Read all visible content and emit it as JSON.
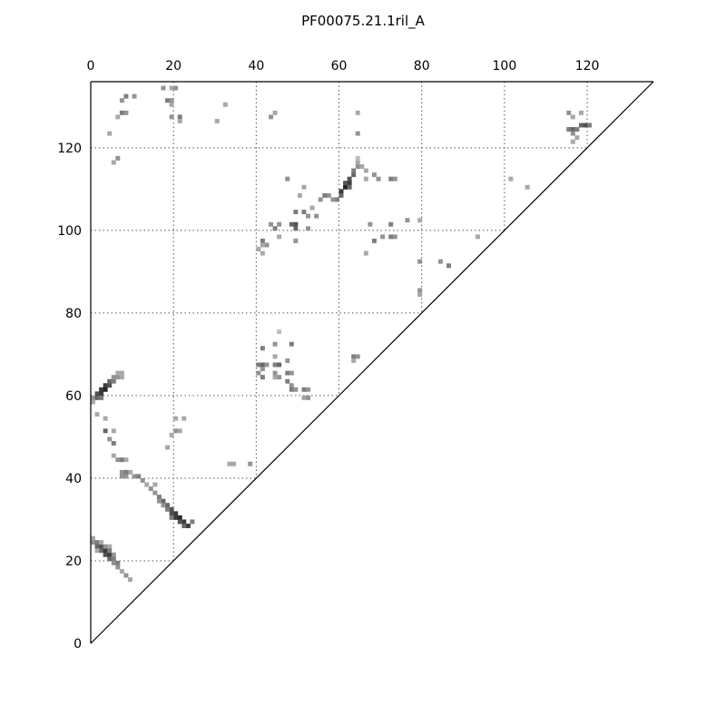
{
  "chart_data": {
    "type": "heatmap",
    "title": "PF00075.21.1ril_A",
    "xlabel": "",
    "ylabel": "",
    "xlim": [
      0,
      136
    ],
    "ylim": [
      0,
      136
    ],
    "x_ticks": [
      0,
      20,
      40,
      60,
      80,
      100,
      120
    ],
    "y_ticks": [
      0,
      20,
      40,
      60,
      80,
      100,
      120
    ],
    "x_tick_labels": [
      "0",
      "20",
      "40",
      "60",
      "80",
      "100",
      "120"
    ],
    "y_tick_labels": [
      "0",
      "20",
      "40",
      "60",
      "80",
      "100",
      "120"
    ],
    "grid": true,
    "x_axis_position": "top",
    "colormap": "grayscale",
    "value_range": [
      0,
      1
    ],
    "cell_size": 1,
    "cells": [
      [
        0,
        25,
        0.4
      ],
      [
        0,
        24,
        0.5
      ],
      [
        1,
        24,
        0.6
      ],
      [
        1,
        23,
        0.7
      ],
      [
        2,
        23,
        0.8
      ],
      [
        2,
        22,
        0.7
      ],
      [
        3,
        22,
        0.9
      ],
      [
        3,
        21,
        0.8
      ],
      [
        4,
        21,
        0.9
      ],
      [
        4,
        20,
        0.7
      ],
      [
        5,
        20,
        0.6
      ],
      [
        5,
        19,
        0.5
      ],
      [
        6,
        19,
        0.6
      ],
      [
        6,
        18,
        0.5
      ],
      [
        7,
        17,
        0.4
      ],
      [
        8,
        16,
        0.5
      ],
      [
        9,
        15,
        0.4
      ],
      [
        2,
        24,
        0.4
      ],
      [
        3,
        23,
        0.5
      ],
      [
        4,
        23,
        0.4
      ],
      [
        4,
        22,
        0.6
      ],
      [
        5,
        21,
        0.5
      ],
      [
        1,
        22,
        0.4
      ],
      [
        23,
        28,
        0.9
      ],
      [
        22,
        29,
        0.9
      ],
      [
        21,
        30,
        1.0
      ],
      [
        20,
        31,
        0.9
      ],
      [
        19,
        31,
        0.8
      ],
      [
        19,
        32,
        0.8
      ],
      [
        18,
        33,
        0.7
      ],
      [
        17,
        34,
        0.7
      ],
      [
        16,
        35,
        0.6
      ],
      [
        15,
        36,
        0.5
      ],
      [
        14,
        37,
        0.5
      ],
      [
        13,
        38,
        0.4
      ],
      [
        12,
        39,
        0.5
      ],
      [
        11,
        40,
        0.6
      ],
      [
        10,
        40,
        0.5
      ],
      [
        9,
        41,
        0.4
      ],
      [
        22,
        28,
        0.7
      ],
      [
        21,
        29,
        0.8
      ],
      [
        20,
        30,
        0.9
      ],
      [
        19,
        30,
        0.6
      ],
      [
        18,
        32,
        0.6
      ],
      [
        17,
        33,
        0.5
      ],
      [
        16,
        34,
        0.5
      ],
      [
        24,
        29,
        0.6
      ],
      [
        7,
        41,
        0.5
      ],
      [
        7,
        40,
        0.5
      ],
      [
        8,
        41,
        0.6
      ],
      [
        8,
        40,
        0.5
      ],
      [
        15,
        38,
        0.4
      ],
      [
        6,
        44,
        0.5
      ],
      [
        7,
        44,
        0.6
      ],
      [
        5,
        45,
        0.4
      ],
      [
        8,
        44,
        0.4
      ],
      [
        5,
        48,
        0.6
      ],
      [
        4,
        49,
        0.5
      ],
      [
        3,
        51,
        0.7
      ],
      [
        5,
        51,
        0.4
      ],
      [
        3,
        54,
        0.4
      ],
      [
        1,
        55,
        0.4
      ],
      [
        33,
        43,
        0.4
      ],
      [
        34,
        43,
        0.4
      ],
      [
        38,
        43,
        0.5
      ],
      [
        18,
        47,
        0.4
      ],
      [
        19,
        50,
        0.4
      ],
      [
        20,
        51,
        0.5
      ],
      [
        21,
        51,
        0.4
      ],
      [
        20,
        54,
        0.4
      ],
      [
        22,
        54,
        0.4
      ],
      [
        0,
        59,
        0.5
      ],
      [
        1,
        59,
        0.7
      ],
      [
        1,
        60,
        0.8
      ],
      [
        2,
        60,
        0.9
      ],
      [
        2,
        61,
        0.9
      ],
      [
        3,
        61,
        1.0
      ],
      [
        3,
        62,
        0.9
      ],
      [
        4,
        62,
        0.8
      ],
      [
        4,
        63,
        0.7
      ],
      [
        5,
        63,
        0.6
      ],
      [
        5,
        64,
        0.5
      ],
      [
        6,
        64,
        0.5
      ],
      [
        6,
        65,
        0.4
      ],
      [
        7,
        65,
        0.4
      ],
      [
        7,
        64,
        0.4
      ],
      [
        2,
        59,
        0.6
      ],
      [
        0,
        58,
        0.4
      ],
      [
        40,
        67,
        0.6
      ],
      [
        41,
        67,
        0.7
      ],
      [
        41,
        66,
        0.5
      ],
      [
        40,
        65,
        0.5
      ],
      [
        41,
        64,
        0.6
      ],
      [
        42,
        67,
        0.5
      ],
      [
        41,
        71,
        0.6
      ],
      [
        44,
        72,
        0.5
      ],
      [
        44,
        69,
        0.4
      ],
      [
        44,
        67,
        0.6
      ],
      [
        45,
        67,
        0.7
      ],
      [
        44,
        65,
        0.5
      ],
      [
        44,
        64,
        0.4
      ],
      [
        45,
        64,
        0.5
      ],
      [
        45,
        75,
        0.3
      ],
      [
        47,
        68,
        0.5
      ],
      [
        47,
        65,
        0.6
      ],
      [
        48,
        65,
        0.5
      ],
      [
        48,
        72,
        0.6
      ],
      [
        47,
        63,
        0.6
      ],
      [
        48,
        62,
        0.5
      ],
      [
        48,
        61,
        0.6
      ],
      [
        49,
        61,
        0.5
      ],
      [
        51,
        61,
        0.6
      ],
      [
        52,
        61,
        0.5
      ],
      [
        51,
        59,
        0.4
      ],
      [
        52,
        59,
        0.5
      ],
      [
        63,
        69,
        0.6
      ],
      [
        64,
        69,
        0.5
      ],
      [
        63,
        68,
        0.4
      ],
      [
        59,
        107,
        0.6
      ],
      [
        60,
        108,
        0.7
      ],
      [
        60,
        109,
        0.9
      ],
      [
        61,
        110,
        1.0
      ],
      [
        62,
        111,
        0.9
      ],
      [
        62,
        112,
        0.8
      ],
      [
        63,
        113,
        0.7
      ],
      [
        63,
        114,
        0.6
      ],
      [
        64,
        115,
        0.5
      ],
      [
        65,
        115,
        0.4
      ],
      [
        58,
        107,
        0.5
      ],
      [
        57,
        108,
        0.5
      ],
      [
        56,
        108,
        0.6
      ],
      [
        55,
        107,
        0.5
      ],
      [
        61,
        111,
        0.8
      ],
      [
        62,
        110,
        0.7
      ],
      [
        64,
        116,
        0.4
      ],
      [
        64,
        117,
        0.3
      ],
      [
        66,
        114,
        0.4
      ],
      [
        68,
        113,
        0.5
      ],
      [
        69,
        112,
        0.5
      ],
      [
        66,
        112,
        0.4
      ],
      [
        72,
        112,
        0.6
      ],
      [
        73,
        112,
        0.5
      ],
      [
        53,
        105,
        0.4
      ],
      [
        54,
        103,
        0.5
      ],
      [
        51,
        104,
        0.6
      ],
      [
        52,
        103,
        0.5
      ],
      [
        49,
        104,
        0.6
      ],
      [
        51,
        110,
        0.4
      ],
      [
        47,
        112,
        0.5
      ],
      [
        50,
        108,
        0.4
      ],
      [
        43,
        101,
        0.5
      ],
      [
        44,
        100,
        0.6
      ],
      [
        45,
        101,
        0.5
      ],
      [
        48,
        101,
        0.7
      ],
      [
        49,
        101,
        0.8
      ],
      [
        49,
        100,
        0.7
      ],
      [
        52,
        100,
        0.5
      ],
      [
        41,
        97,
        0.6
      ],
      [
        42,
        96,
        0.5
      ],
      [
        40,
        95,
        0.4
      ],
      [
        41,
        94,
        0.4
      ],
      [
        45,
        98,
        0.4
      ],
      [
        49,
        97,
        0.5
      ],
      [
        41,
        96,
        0.4
      ],
      [
        67,
        101,
        0.5
      ],
      [
        68,
        97,
        0.6
      ],
      [
        70,
        98,
        0.5
      ],
      [
        72,
        101,
        0.6
      ],
      [
        72,
        98,
        0.6
      ],
      [
        73,
        98,
        0.5
      ],
      [
        76,
        102,
        0.5
      ],
      [
        79,
        102,
        0.4
      ],
      [
        66,
        94,
        0.4
      ],
      [
        79,
        92,
        0.5
      ],
      [
        84,
        92,
        0.5
      ],
      [
        86,
        91,
        0.6
      ],
      [
        79,
        85,
        0.5
      ],
      [
        79,
        84,
        0.4
      ],
      [
        93,
        98,
        0.4
      ],
      [
        101,
        112,
        0.4
      ],
      [
        105,
        110,
        0.4
      ],
      [
        115,
        128,
        0.5
      ],
      [
        116,
        127,
        0.4
      ],
      [
        115,
        124,
        0.6
      ],
      [
        116,
        124,
        0.7
      ],
      [
        117,
        124,
        0.6
      ],
      [
        118,
        125,
        0.7
      ],
      [
        119,
        125,
        0.8
      ],
      [
        120,
        125,
        0.6
      ],
      [
        116,
        123,
        0.5
      ],
      [
        117,
        122,
        0.4
      ],
      [
        116,
        121,
        0.4
      ],
      [
        118,
        128,
        0.4
      ],
      [
        64,
        128,
        0.4
      ],
      [
        64,
        123,
        0.5
      ],
      [
        44,
        128,
        0.4
      ],
      [
        43,
        127,
        0.5
      ],
      [
        7,
        128,
        0.6
      ],
      [
        8,
        128,
        0.5
      ],
      [
        6,
        127,
        0.4
      ],
      [
        7,
        131,
        0.5
      ],
      [
        8,
        132,
        0.6
      ],
      [
        10,
        132,
        0.5
      ],
      [
        4,
        123,
        0.4
      ],
      [
        6,
        117,
        0.5
      ],
      [
        5,
        116,
        0.4
      ],
      [
        17,
        134,
        0.5
      ],
      [
        19,
        134,
        0.4
      ],
      [
        20,
        134,
        0.5
      ],
      [
        18,
        131,
        0.6
      ],
      [
        19,
        131,
        0.5
      ],
      [
        19,
        130,
        0.4
      ],
      [
        19,
        127,
        0.5
      ],
      [
        21,
        127,
        0.6
      ],
      [
        21,
        126,
        0.4
      ],
      [
        30,
        126,
        0.4
      ],
      [
        32,
        130,
        0.4
      ]
    ]
  }
}
